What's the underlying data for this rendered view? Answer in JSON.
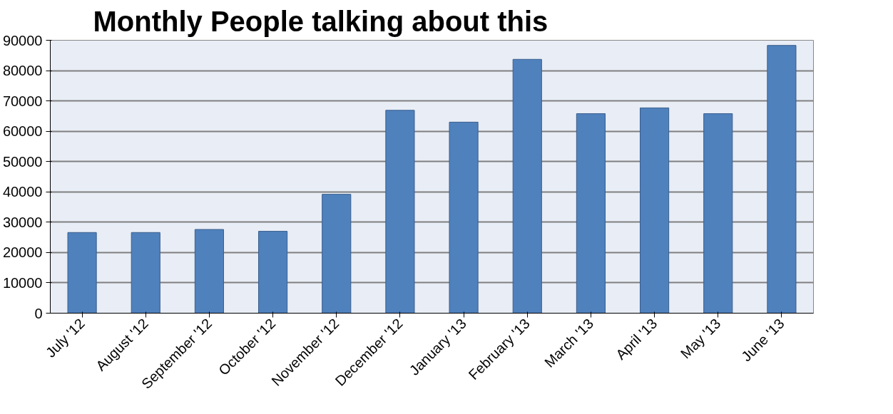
{
  "chart_data": {
    "type": "bar",
    "title": "Monthly People talking about this",
    "categories": [
      "July '12",
      "August '12",
      "September '12",
      "October '12",
      "November '12",
      "December '12",
      "January '13",
      "February '13",
      "March '13",
      "April '13",
      "May '13",
      "June '13"
    ],
    "values": [
      26600,
      26600,
      27600,
      27000,
      39200,
      66900,
      63000,
      83700,
      65800,
      67700,
      65800,
      88300
    ],
    "color": "#4f81bd",
    "ylim": [
      0,
      90000
    ],
    "yticks": [
      0,
      10000,
      20000,
      30000,
      40000,
      50000,
      60000,
      70000,
      80000,
      90000
    ],
    "grid": "y"
  }
}
